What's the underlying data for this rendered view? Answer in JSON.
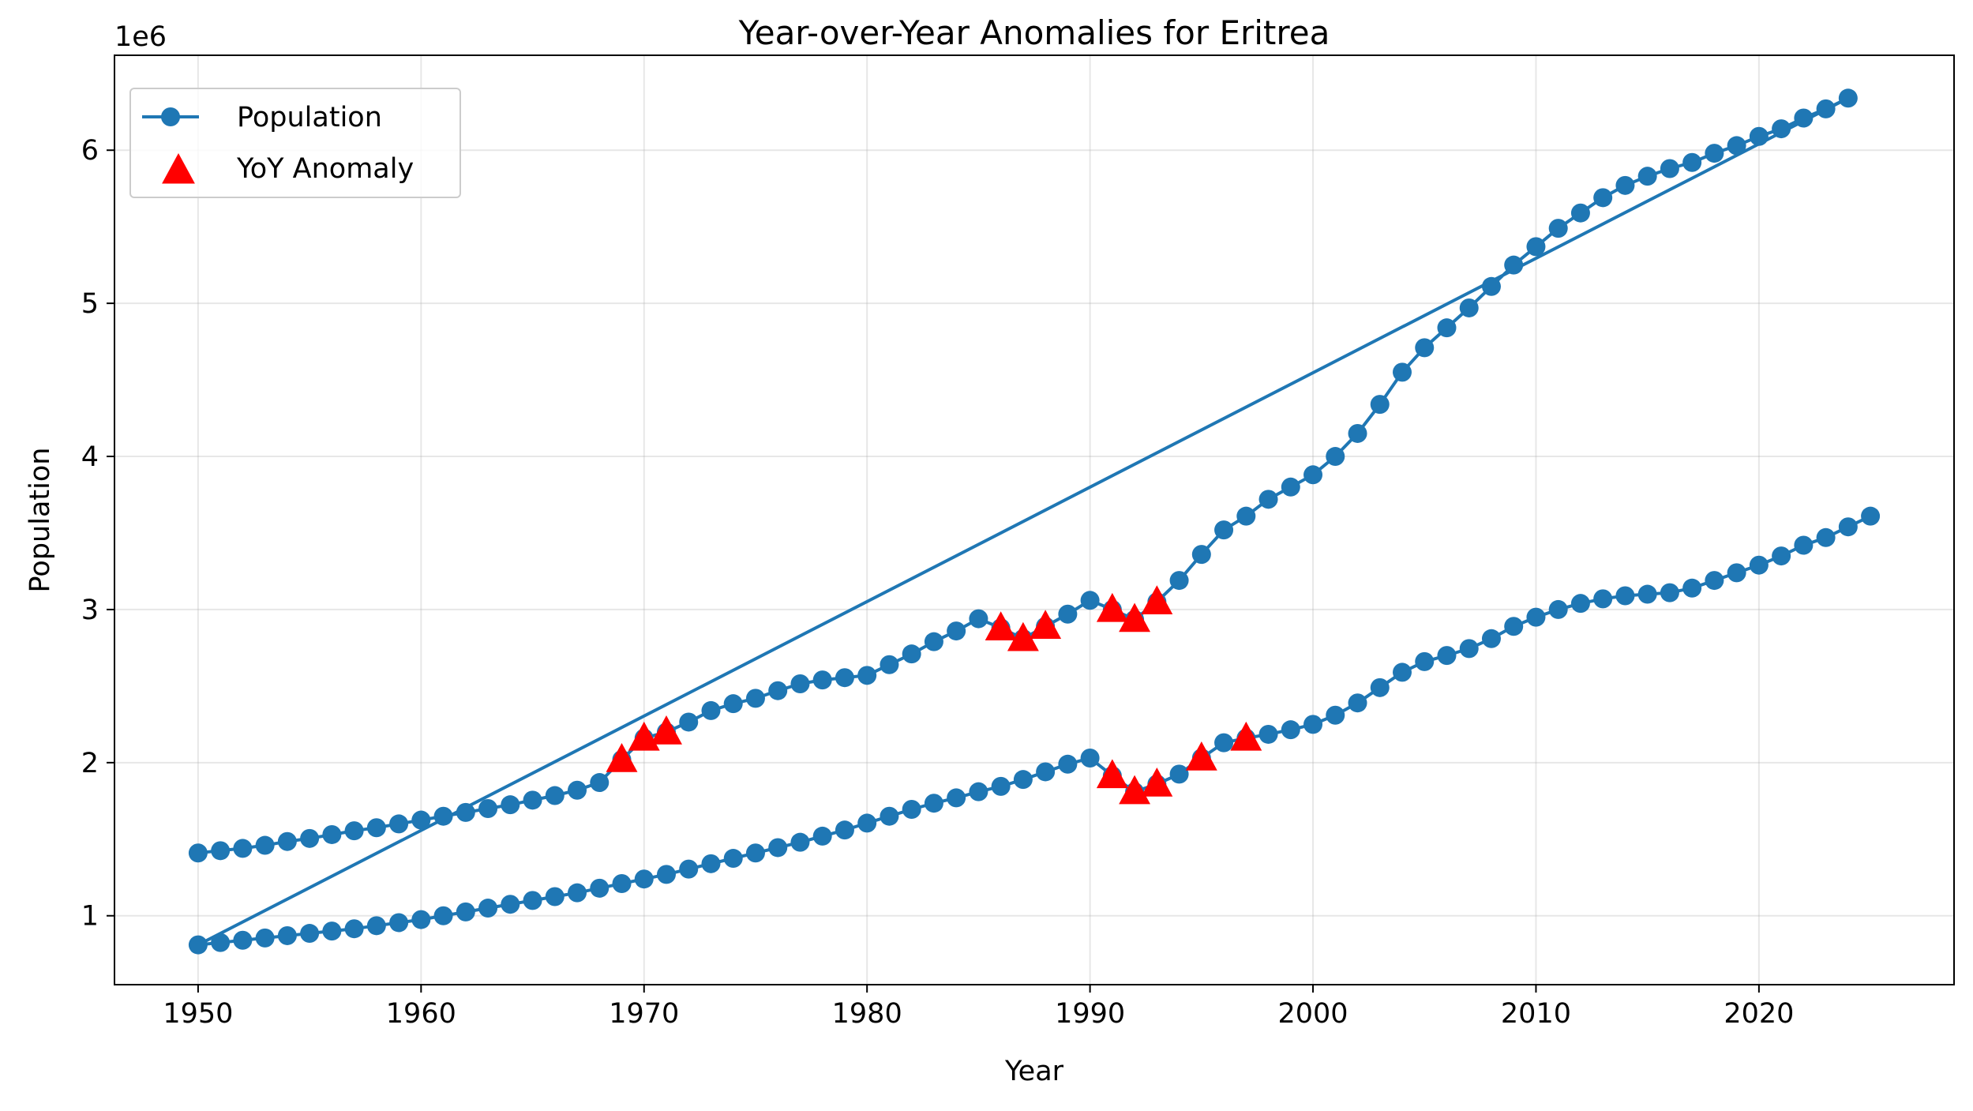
{
  "chart_data": {
    "type": "line",
    "title": "Year-over-Year Anomalies for Eritrea",
    "xlabel": "Year",
    "ylabel": "Population",
    "y_offset_label": "1e6",
    "xlim": [
      1946.25,
      2028.75
    ],
    "ylim": [
      550000,
      6620000
    ],
    "xticks": [
      1950,
      1960,
      1970,
      1980,
      1990,
      2000,
      2010,
      2020
    ],
    "xtick_labels": [
      "1950",
      "1960",
      "1970",
      "1980",
      "1990",
      "2000",
      "2010",
      "2020"
    ],
    "yticks": [
      1000000,
      2000000,
      3000000,
      4000000,
      5000000,
      6000000
    ],
    "ytick_labels": [
      "1",
      "2",
      "3",
      "4",
      "5",
      "6"
    ],
    "grid": true,
    "legend_position": "top-left",
    "series": [
      {
        "name": "Population",
        "kind": "line-marker",
        "color": "#1f77b4",
        "x": [
          1950,
          1951,
          1952,
          1953,
          1954,
          1955,
          1956,
          1957,
          1958,
          1959,
          1960,
          1961,
          1962,
          1963,
          1964,
          1965,
          1966,
          1967,
          1968,
          1969,
          1970,
          1971,
          1972,
          1973,
          1974,
          1975,
          1976,
          1977,
          1978,
          1979,
          1980,
          1981,
          1982,
          1983,
          1984,
          1985,
          1986,
          1987,
          1988,
          1989,
          1990,
          1991,
          1992,
          1993,
          1994,
          1995,
          1996,
          1997,
          1998,
          1999,
          2000,
          2001,
          2002,
          2003,
          2004,
          2005,
          2006,
          2007,
          2008,
          2009,
          2010,
          2011,
          2012,
          2013,
          2014,
          2015,
          2016,
          2017,
          2018,
          2019,
          2020,
          2021,
          2022,
          2023,
          2024,
          1950,
          1951,
          1952,
          1953,
          1954,
          1955,
          1956,
          1957,
          1958,
          1959,
          1960,
          1961,
          1962,
          1963,
          1964,
          1965,
          1966,
          1967,
          1968,
          1969,
          1970,
          1971,
          1972,
          1973,
          1974,
          1975,
          1976,
          1977,
          1978,
          1979,
          1980,
          1981,
          1982,
          1983,
          1984,
          1985,
          1986,
          1987,
          1988,
          1989,
          1990,
          1991,
          1992,
          1993,
          1994,
          1995,
          1996,
          1997,
          1998,
          1999,
          2000,
          2001,
          2002,
          2003,
          2004,
          2005,
          2006,
          2007,
          2008,
          2009,
          2010,
          2011,
          2012,
          2013,
          2014,
          2015,
          2016,
          2017,
          2018,
          2019,
          2020,
          2021,
          2022,
          2023,
          2024,
          2025
        ],
        "y": [
          1410000,
          1425000,
          1440000,
          1460000,
          1485000,
          1505000,
          1530000,
          1555000,
          1575000,
          1600000,
          1625000,
          1650000,
          1675000,
          1700000,
          1725000,
          1755000,
          1785000,
          1820000,
          1870000,
          2020000,
          2160000,
          2200000,
          2265000,
          2340000,
          2385000,
          2420000,
          2470000,
          2515000,
          2540000,
          2555000,
          2570000,
          2640000,
          2710000,
          2790000,
          2860000,
          2940000,
          2880000,
          2810000,
          2890000,
          2970000,
          3060000,
          3000000,
          2935000,
          3050000,
          3190000,
          3360000,
          3520000,
          3610000,
          3720000,
          3800000,
          3880000,
          4000000,
          4150000,
          4340000,
          4550000,
          4710000,
          4840000,
          4970000,
          5110000,
          5250000,
          5370000,
          5490000,
          5590000,
          5690000,
          5770000,
          5830000,
          5880000,
          5920000,
          5980000,
          6030000,
          6090000,
          6140000,
          6210000,
          6270000,
          6340000,
          810000,
          825000,
          840000,
          855000,
          870000,
          885000,
          900000,
          915000,
          935000,
          955000,
          975000,
          1000000,
          1025000,
          1050000,
          1075000,
          1100000,
          1125000,
          1150000,
          1180000,
          1210000,
          1240000,
          1270000,
          1305000,
          1340000,
          1375000,
          1410000,
          1445000,
          1480000,
          1520000,
          1560000,
          1605000,
          1650000,
          1695000,
          1735000,
          1770000,
          1810000,
          1845000,
          1890000,
          1940000,
          1990000,
          2030000,
          1915000,
          1810000,
          1860000,
          1925000,
          2030000,
          2130000,
          2160000,
          2185000,
          2215000,
          2250000,
          2310000,
          2390000,
          2490000,
          2590000,
          2660000,
          2700000,
          2745000,
          2810000,
          2890000,
          2950000,
          3000000,
          3040000,
          3070000,
          3090000,
          3100000,
          3110000,
          3140000,
          3190000,
          3240000,
          3290000,
          3350000,
          3420000,
          3470000,
          3540000,
          3610000
        ]
      },
      {
        "name": "YoY Anomaly",
        "kind": "scatter",
        "color": "#ff0000",
        "marker": "triangle-up",
        "x": [
          1969,
          1970,
          1971,
          1986,
          1987,
          1988,
          1991,
          1992,
          1993,
          1991,
          1992,
          1993,
          1995,
          1997
        ],
        "y": [
          2020000,
          2160000,
          2200000,
          2880000,
          2810000,
          2890000,
          3000000,
          2935000,
          3050000,
          1915000,
          1810000,
          1860000,
          2030000,
          2160000
        ]
      }
    ]
  }
}
